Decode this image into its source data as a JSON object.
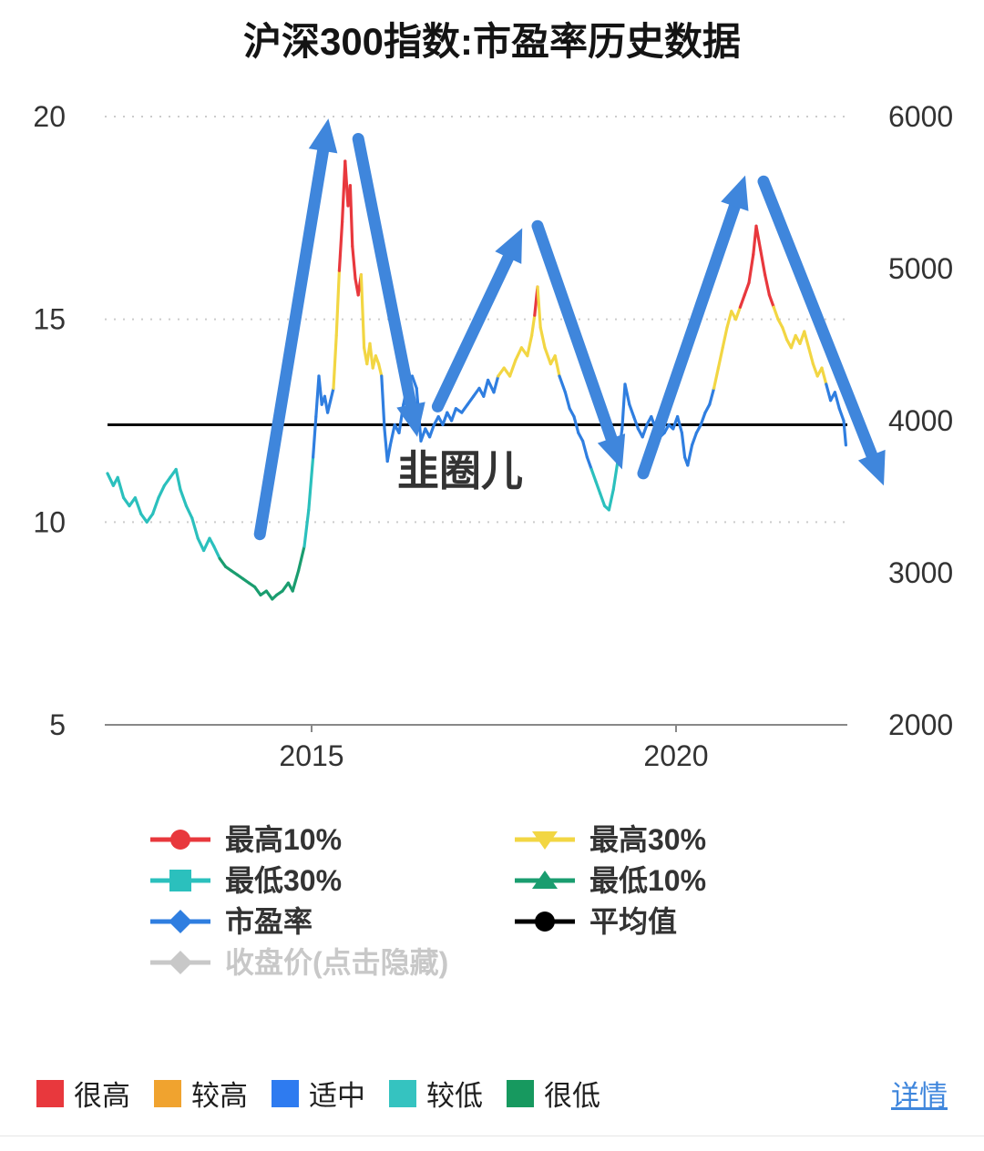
{
  "page": {
    "title": "沪深300指数:市盈率历史数据",
    "watermark": "韭圈儿",
    "detail_link": "详情"
  },
  "legend": {
    "items": [
      {
        "key": "highest-10",
        "label": "最高10%",
        "marker": "circle",
        "color": "#e8383d",
        "hidden": false
      },
      {
        "key": "highest-30",
        "label": "最高30%",
        "marker": "triangle-down",
        "color": "#f2d643",
        "hidden": false
      },
      {
        "key": "lowest-30",
        "label": "最低30%",
        "marker": "square",
        "color": "#2bc0bd",
        "hidden": false
      },
      {
        "key": "lowest-10",
        "label": "最低10%",
        "marker": "triangle-up",
        "color": "#1a9d6f",
        "hidden": false
      },
      {
        "key": "pe-ratio",
        "label": "市盈率",
        "marker": "diamond",
        "color": "#2f7ee0",
        "hidden": false
      },
      {
        "key": "average",
        "label": "平均值",
        "marker": "circle",
        "color": "#000000",
        "hidden": false
      },
      {
        "key": "close-price",
        "label": "收盘价(点击隐藏)",
        "marker": "diamond",
        "color": "#c8c8c8",
        "hidden": true
      }
    ]
  },
  "valuation_key": {
    "items": [
      {
        "key": "very-high",
        "label": "很高",
        "color": "#e8383d"
      },
      {
        "key": "high",
        "label": "较高",
        "color": "#f0a32f"
      },
      {
        "key": "moderate",
        "label": "适中",
        "color": "#2e7bf0"
      },
      {
        "key": "low",
        "label": "较低",
        "color": "#35c3c0"
      },
      {
        "key": "very-low",
        "label": "很低",
        "color": "#17995f"
      }
    ]
  },
  "chart_data": {
    "type": "line",
    "title": "沪深300指数:市盈率历史数据",
    "grid": true,
    "x_axis": {
      "ticks": [
        2015,
        2020
      ],
      "range": [
        2012.2,
        2022.35
      ]
    },
    "y_axis_left": {
      "label": "市盈率",
      "ticks": [
        5,
        10,
        15,
        20
      ],
      "range": [
        5,
        20
      ]
    },
    "y_axis_right": {
      "label": "收盘价",
      "ticks": [
        2000,
        3000,
        4000,
        5000,
        6000
      ],
      "range": [
        2000,
        6000
      ]
    },
    "average_value": 12.4,
    "bands": {
      "red_min": 15.45,
      "yellow_min": 13.55,
      "blue_min": 11.45,
      "teal_min": 9.2
    },
    "band_colors": {
      "red": "#e8383d",
      "yellow": "#f2d643",
      "blue": "#2f7ee0",
      "teal": "#2bc0bd",
      "green": "#1a9d6f"
    },
    "series": [
      {
        "name": "市盈率",
        "x": [
          2012.2,
          2012.28,
          2012.34,
          2012.42,
          2012.5,
          2012.58,
          2012.66,
          2012.74,
          2012.82,
          2012.9,
          2012.98,
          2013.06,
          2013.14,
          2013.2,
          2013.28,
          2013.36,
          2013.44,
          2013.52,
          2013.6,
          2013.66,
          2013.74,
          2013.82,
          2013.9,
          2013.98,
          2014.06,
          2014.14,
          2014.22,
          2014.3,
          2014.38,
          2014.46,
          2014.52,
          2014.6,
          2014.68,
          2014.74,
          2014.82,
          2014.9,
          2014.96,
          2015.02,
          2015.06,
          2015.1,
          2015.14,
          2015.18,
          2015.22,
          2015.26,
          2015.3,
          2015.34,
          2015.38,
          2015.42,
          2015.46,
          2015.5,
          2015.53,
          2015.56,
          2015.6,
          2015.64,
          2015.68,
          2015.72,
          2015.76,
          2015.8,
          2015.84,
          2015.88,
          2015.92,
          2015.96,
          2016.0,
          2016.04,
          2016.08,
          2016.14,
          2016.2,
          2016.26,
          2016.32,
          2016.38,
          2016.44,
          2016.5,
          2016.56,
          2016.62,
          2016.68,
          2016.74,
          2016.8,
          2016.86,
          2016.92,
          2016.98,
          2017.06,
          2017.14,
          2017.22,
          2017.3,
          2017.36,
          2017.42,
          2017.5,
          2017.56,
          2017.64,
          2017.72,
          2017.8,
          2017.88,
          2017.96,
          2018.02,
          2018.06,
          2018.1,
          2018.14,
          2018.2,
          2018.28,
          2018.34,
          2018.4,
          2018.48,
          2018.54,
          2018.6,
          2018.66,
          2018.72,
          2018.78,
          2018.84,
          2018.9,
          2018.96,
          2019.02,
          2019.08,
          2019.14,
          2019.2,
          2019.26,
          2019.3,
          2019.36,
          2019.42,
          2019.48,
          2019.54,
          2019.6,
          2019.66,
          2019.72,
          2019.78,
          2019.84,
          2019.9,
          2019.96,
          2020.02,
          2020.08,
          2020.12,
          2020.16,
          2020.22,
          2020.28,
          2020.34,
          2020.4,
          2020.46,
          2020.52,
          2020.58,
          2020.64,
          2020.7,
          2020.76,
          2020.82,
          2020.88,
          2020.94,
          2021.0,
          2021.06,
          2021.1,
          2021.16,
          2021.22,
          2021.28,
          2021.34,
          2021.4,
          2021.46,
          2021.52,
          2021.58,
          2021.64,
          2021.7,
          2021.76,
          2021.82,
          2021.88,
          2021.94,
          2022.0,
          2022.06,
          2022.12,
          2022.18,
          2022.24,
          2022.3,
          2022.33
        ],
        "y": [
          11.2,
          10.9,
          11.1,
          10.6,
          10.4,
          10.6,
          10.2,
          10.0,
          10.2,
          10.6,
          10.9,
          11.1,
          11.3,
          10.8,
          10.4,
          10.1,
          9.6,
          9.3,
          9.6,
          9.4,
          9.1,
          8.9,
          8.8,
          8.7,
          8.6,
          8.5,
          8.4,
          8.2,
          8.3,
          8.1,
          8.2,
          8.3,
          8.5,
          8.3,
          8.8,
          9.4,
          10.3,
          11.6,
          12.6,
          13.6,
          12.9,
          13.1,
          12.7,
          13.0,
          13.3,
          14.6,
          16.2,
          17.4,
          18.9,
          17.8,
          18.3,
          16.8,
          16.0,
          15.6,
          16.1,
          14.3,
          13.9,
          14.4,
          13.8,
          14.1,
          13.9,
          13.6,
          12.3,
          11.5,
          11.9,
          12.4,
          12.2,
          12.9,
          13.4,
          13.6,
          13.3,
          12.0,
          12.3,
          12.1,
          12.4,
          12.6,
          12.4,
          12.7,
          12.5,
          12.8,
          12.7,
          12.9,
          13.1,
          13.3,
          13.1,
          13.5,
          13.2,
          13.6,
          13.8,
          13.6,
          14.0,
          14.3,
          14.1,
          14.6,
          15.1,
          15.8,
          14.8,
          14.3,
          13.9,
          14.1,
          13.6,
          13.2,
          12.8,
          12.6,
          12.2,
          12.0,
          11.6,
          11.3,
          11.0,
          10.7,
          10.4,
          10.3,
          10.8,
          11.5,
          12.3,
          13.4,
          12.9,
          12.6,
          12.3,
          12.1,
          12.4,
          12.6,
          12.3,
          12.1,
          12.2,
          12.4,
          12.3,
          12.6,
          12.2,
          11.6,
          11.4,
          11.9,
          12.2,
          12.4,
          12.7,
          12.9,
          13.3,
          13.8,
          14.3,
          14.8,
          15.2,
          15.0,
          15.3,
          15.6,
          15.9,
          16.6,
          17.3,
          16.7,
          16.1,
          15.6,
          15.3,
          15.0,
          14.8,
          14.5,
          14.3,
          14.6,
          14.4,
          14.7,
          14.3,
          13.9,
          13.6,
          13.8,
          13.4,
          13.0,
          13.2,
          12.8,
          12.5,
          11.9
        ]
      }
    ],
    "annotations": {
      "arrow_color": "#3f86dc",
      "arrows": [
        {
          "from": [
            2014.29,
            9.7
          ],
          "to": [
            2015.23,
            19.95
          ]
        },
        {
          "from": [
            2015.64,
            19.45
          ],
          "to": [
            2016.45,
            12.1
          ]
        },
        {
          "from": [
            2016.73,
            12.85
          ],
          "to": [
            2017.89,
            17.25
          ]
        },
        {
          "from": [
            2018.1,
            17.3
          ],
          "to": [
            2019.26,
            11.3
          ]
        },
        {
          "from": [
            2019.55,
            11.2
          ],
          "to": [
            2020.95,
            18.55
          ]
        },
        {
          "from": [
            2021.2,
            18.4
          ],
          "to": [
            2022.85,
            10.9
          ]
        }
      ]
    }
  }
}
